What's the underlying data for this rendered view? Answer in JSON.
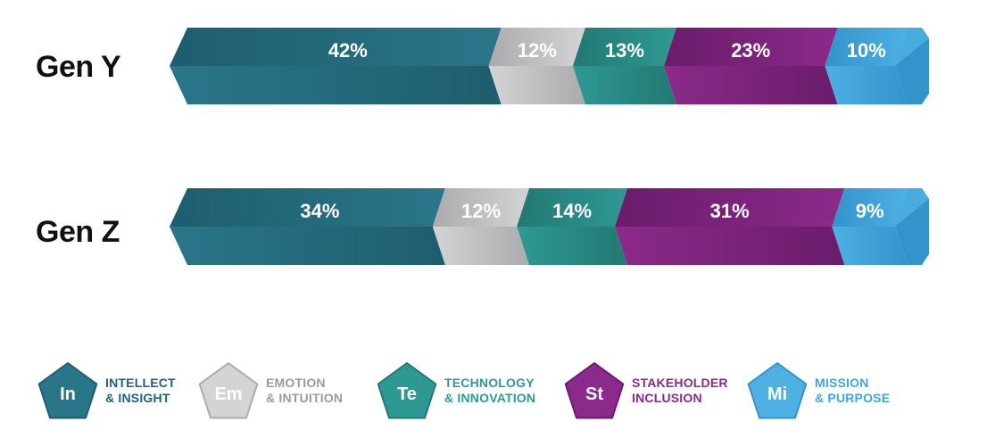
{
  "chart_data": {
    "type": "bar",
    "orientation": "horizontal",
    "stacked": true,
    "percent": true,
    "grid": false,
    "legend_position": "bottom",
    "rows": [
      {
        "name": "Gen Y",
        "values": [
          42,
          12,
          13,
          23,
          10
        ],
        "labels": [
          "42%",
          "12%",
          "13%",
          "23%",
          "10%"
        ]
      },
      {
        "name": "Gen Z",
        "values": [
          34,
          12,
          14,
          31,
          9
        ],
        "labels": [
          "34%",
          "12%",
          "14%",
          "31%",
          "9%"
        ]
      }
    ],
    "categories": [
      {
        "abbr": "In",
        "line1": "INTELLECT",
        "line2": "& INSIGHT",
        "color": "#2a7689",
        "color_dark": "#1e5d6e",
        "text_color": "#1e6478"
      },
      {
        "abbr": "Em",
        "line1": "EMOTION",
        "line2": "& INTUITION",
        "color": "#d4d4d6",
        "color_dark": "#ababad",
        "text_color": "#9b9b9b"
      },
      {
        "abbr": "Te",
        "line1": "TECHNOLOGY",
        "line2": "& INNOVATION",
        "color": "#2e9993",
        "color_dark": "#227873",
        "text_color": "#2e9993"
      },
      {
        "abbr": "St",
        "line1": "STAKEHOLDER",
        "line2": "INCLUSION",
        "color": "#8b2a8a",
        "color_dark": "#6a1c6b",
        "text_color": "#8b2a8a"
      },
      {
        "abbr": "Mi",
        "line1": "MISSION",
        "line2": "& PURPOSE",
        "color": "#4eb0e3",
        "color_dark": "#3393cb",
        "text_color": "#3ea6df"
      }
    ]
  }
}
